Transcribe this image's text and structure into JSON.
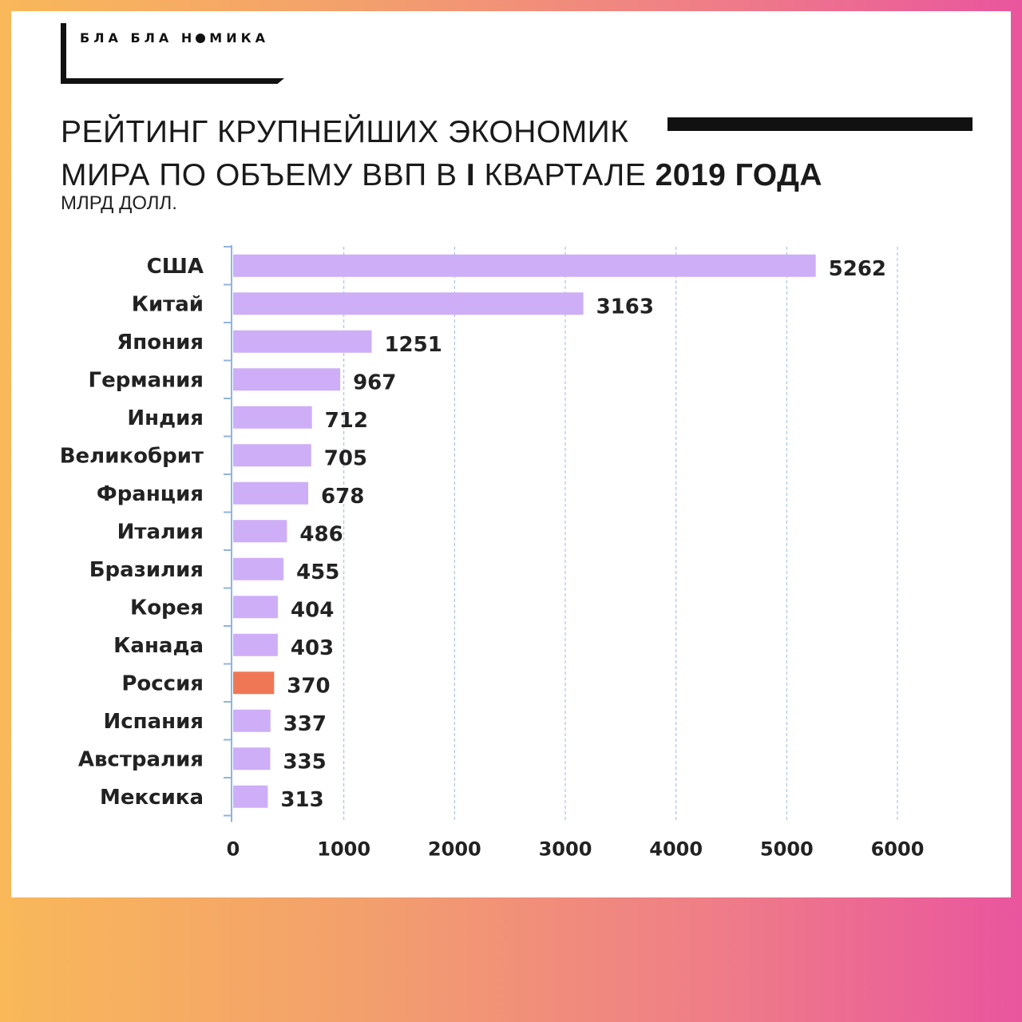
{
  "logo": {
    "text_before": "БЛА БЛА Н",
    "text_after": "МИКА"
  },
  "title": {
    "line1": "РЕЙТИНГ КРУПНЕЙШИХ ЭКОНОМИК",
    "line2_regular": "МИРА ПО ОБЪЕМУ ВВП В ",
    "line2_bold": "I",
    "line2_regular2": " КВАРТАЛЕ ",
    "line2_bold2": "2019 ГОДА",
    "subtitle": "МЛРД ДОЛЛ."
  },
  "colors": {
    "bar": "#cdaef7",
    "highlight": "#f07755",
    "grid": "#9bb8de",
    "axis": "#8fb4e0",
    "text": "#222222"
  },
  "chart_data": {
    "type": "bar",
    "orientation": "horizontal",
    "categories": [
      "США",
      "Китай",
      "Япония",
      "Германия",
      "Индия",
      "Великобрит",
      "Франция",
      "Италия",
      "Бразилия",
      "Корея",
      "Канада",
      "Россия",
      "Испания",
      "Австралия",
      "Мексика"
    ],
    "values": [
      5262,
      3163,
      1251,
      967,
      712,
      705,
      678,
      486,
      455,
      404,
      403,
      370,
      337,
      335,
      313
    ],
    "highlight_category": "Россия",
    "xlim": [
      0,
      6000
    ],
    "xticks": [
      0,
      1000,
      2000,
      3000,
      4000,
      5000,
      6000
    ],
    "grid": "vertical dashed",
    "title": "РЕЙТИНГ КРУПНЕЙШИХ ЭКОНОМИК МИРА ПО ОБЪЕМУ ВВП В I КВАРТАЛЕ 2019 ГОДА",
    "xlabel": "",
    "ylabel": ""
  }
}
